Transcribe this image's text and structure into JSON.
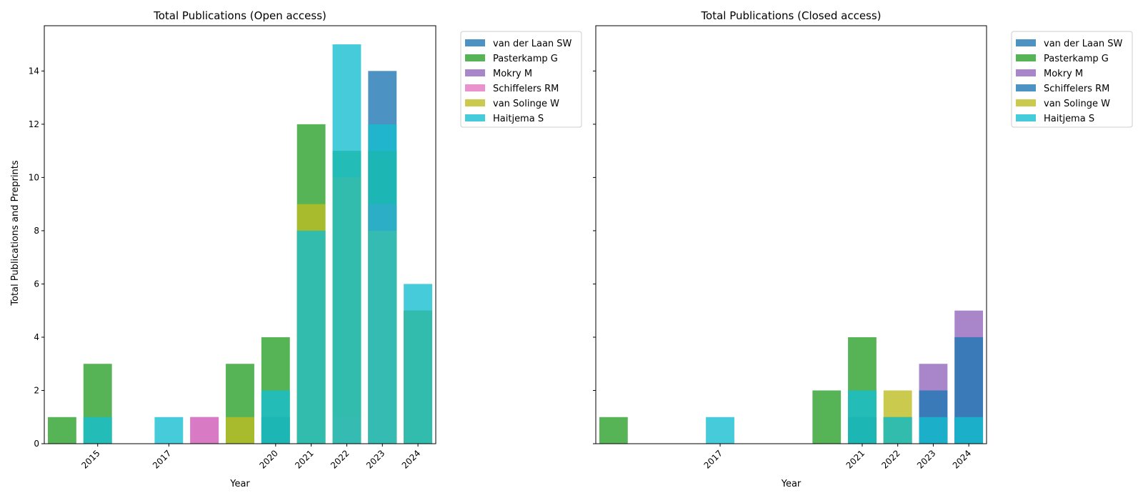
{
  "figure": {
    "ylabel": "Total Publications and Preprints"
  },
  "colors": {
    "van der Laan SW": "#1f77b4",
    "Pasterkamp G": "#2ca02c",
    "Mokry M": "#9467bd",
    "Schiffelers RM": "#e377c2",
    "van Solinge W": "#bcbd22",
    "Haitjema S": "#17becf",
    "Schiffelers RM (closed)": "#1f77b4"
  },
  "chart_data": [
    {
      "type": "bar",
      "stacking": "overlaid",
      "title": "Total Publications (Open access)",
      "xlabel": "Year",
      "ylabel": "Total Publications and Preprints",
      "ylim": [
        0,
        15.7
      ],
      "yticks": [
        0,
        2,
        4,
        6,
        8,
        10,
        12,
        14
      ],
      "x_positions": [
        2014,
        2015,
        2016,
        2017,
        2018,
        2019,
        2020,
        2021,
        2022,
        2023,
        2024
      ],
      "xticks": [
        "2015",
        "2017",
        "2020",
        "2021",
        "2022",
        "2023",
        "2024"
      ],
      "legend": [
        "van der Laan SW",
        "Pasterkamp G",
        "Mokry M",
        "Schiffelers RM",
        "van Solinge W",
        "Haitjema S"
      ],
      "legend_position": "outside upper right",
      "series": [
        {
          "name": "van der Laan SW",
          "color": "#1f77b4",
          "points": [
            [
              2020,
              1
            ],
            [
              2021,
              8
            ],
            [
              2022,
              10
            ],
            [
              2023,
              14
            ],
            [
              2024,
              5
            ]
          ]
        },
        {
          "name": "Pasterkamp G",
          "color": "#2ca02c",
          "points": [
            [
              2014,
              1
            ],
            [
              2015,
              3
            ],
            [
              2019,
              3
            ],
            [
              2020,
              4
            ],
            [
              2021,
              12
            ],
            [
              2022,
              11
            ],
            [
              2023,
              11
            ],
            [
              2024,
              5
            ]
          ]
        },
        {
          "name": "Mokry M",
          "color": "#9467bd",
          "points": [
            [
              2018,
              1
            ],
            [
              2022,
              1
            ],
            [
              2023,
              9
            ]
          ]
        },
        {
          "name": "Schiffelers RM",
          "color": "#e377c2",
          "points": [
            [
              2018,
              1
            ]
          ]
        },
        {
          "name": "van Solinge W",
          "color": "#bcbd22",
          "points": [
            [
              2019,
              1
            ],
            [
              2021,
              9
            ],
            [
              2022,
              10
            ],
            [
              2023,
              8
            ],
            [
              2024,
              5
            ]
          ]
        },
        {
          "name": "Haitjema S",
          "color": "#17becf",
          "points": [
            [
              2015,
              1
            ],
            [
              2017,
              1
            ],
            [
              2020,
              2
            ],
            [
              2021,
              8
            ],
            [
              2022,
              15
            ],
            [
              2023,
              12
            ],
            [
              2024,
              6
            ]
          ]
        }
      ]
    },
    {
      "type": "bar",
      "stacking": "overlaid",
      "title": "Total Publications (Closed access)",
      "xlabel": "Year",
      "ylabel": "",
      "ylim": [
        0,
        15.7
      ],
      "yticks": [
        0,
        2,
        4,
        6,
        8,
        10,
        12,
        14
      ],
      "x_positions": [
        2014,
        2015,
        2016,
        2017,
        2018,
        2019,
        2020,
        2021,
        2022,
        2023,
        2024
      ],
      "xticks": [
        "2017",
        "2021",
        "2022",
        "2023",
        "2024"
      ],
      "legend": [
        "van der Laan SW",
        "Pasterkamp G",
        "Mokry M",
        "Schiffelers RM",
        "van Solinge W",
        "Haitjema S"
      ],
      "legend_position": "outside upper right",
      "series": [
        {
          "name": "van der Laan SW",
          "color": "#1f77b4",
          "points": [
            [
              2021,
              1
            ],
            [
              2022,
              1
            ],
            [
              2023,
              1
            ],
            [
              2024,
              1
            ]
          ]
        },
        {
          "name": "Pasterkamp G",
          "color": "#2ca02c",
          "points": [
            [
              2014,
              1
            ],
            [
              2020,
              2
            ],
            [
              2021,
              4
            ],
            [
              2022,
              1
            ],
            [
              2023,
              1
            ],
            [
              2024,
              1
            ]
          ]
        },
        {
          "name": "Mokry M",
          "color": "#9467bd",
          "points": [
            [
              2023,
              3
            ],
            [
              2024,
              5
            ]
          ]
        },
        {
          "name": "Schiffelers RM",
          "color": "#1f77b4",
          "points": [
            [
              2023,
              2
            ],
            [
              2024,
              4
            ]
          ]
        },
        {
          "name": "van Solinge W",
          "color": "#bcbd22",
          "points": [
            [
              2022,
              2
            ]
          ]
        },
        {
          "name": "Haitjema S",
          "color": "#17becf",
          "points": [
            [
              2017,
              1
            ],
            [
              2021,
              2
            ],
            [
              2022,
              1
            ],
            [
              2023,
              1
            ],
            [
              2024,
              1
            ]
          ]
        }
      ]
    }
  ]
}
